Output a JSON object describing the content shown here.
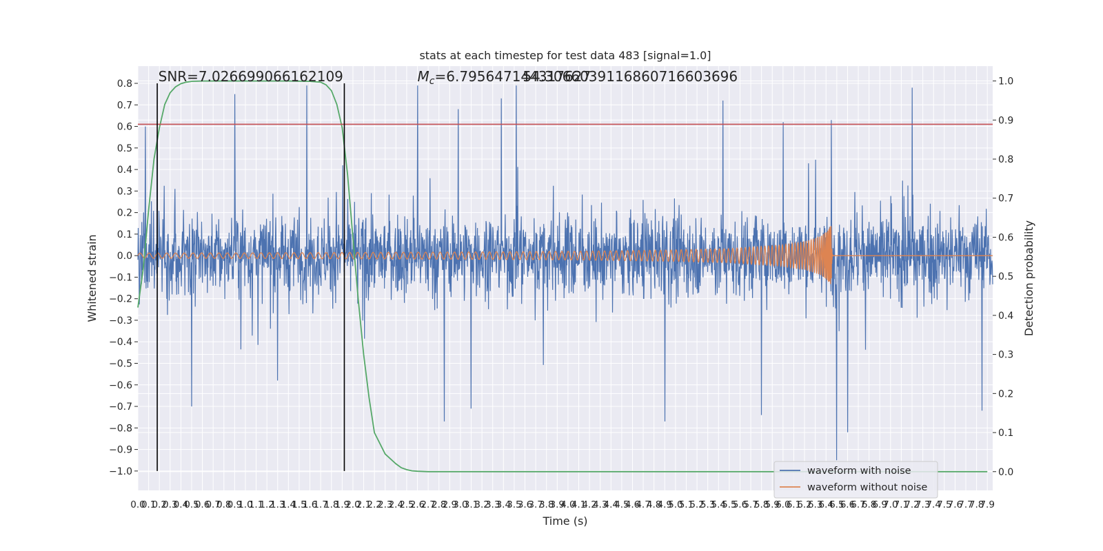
{
  "chart_data": {
    "type": "line",
    "title": "stats at each timestep for test data 483 [signal=1.0]",
    "xlabel": "Time (s)",
    "ylabel": "Whitened strain",
    "y2label": "Detection probability",
    "xlim": [
      0.0,
      7.95
    ],
    "ylim": [
      -1.09,
      0.88
    ],
    "y2lim": [
      -0.048,
      1.038
    ],
    "x_ticks": [
      0.0,
      0.1,
      0.2,
      0.3,
      0.4,
      0.5,
      0.6,
      0.7,
      0.8,
      0.9,
      1.0,
      1.1,
      1.2,
      1.3,
      1.4,
      1.5,
      1.6,
      1.7,
      1.8,
      1.9,
      2.0,
      2.1,
      2.2,
      2.3,
      2.4,
      2.5,
      2.6,
      2.7,
      2.8,
      2.9,
      3.0,
      3.1,
      3.2,
      3.3,
      3.4,
      3.5,
      3.6,
      3.7,
      3.8,
      3.9,
      4.0,
      4.1,
      4.2,
      4.3,
      4.4,
      4.5,
      4.6,
      4.7,
      4.8,
      4.9,
      5.0,
      5.1,
      5.2,
      5.3,
      5.4,
      5.5,
      5.6,
      5.7,
      5.8,
      5.9,
      6.0,
      6.1,
      6.2,
      6.3,
      6.4,
      6.5,
      6.6,
      6.7,
      6.8,
      6.9,
      7.0,
      7.1,
      7.2,
      7.3,
      7.4,
      7.5,
      7.6,
      7.7,
      7.8,
      7.9
    ],
    "x_tick_labels": [
      "0.0",
      "0.1",
      "0.2",
      "0.3",
      "0.4",
      "0.5",
      "0.6",
      "0.7",
      "0.8",
      "0.9",
      "1.0",
      "1.1",
      "1.2",
      "1.3",
      "1.4",
      "1.5",
      "1.6",
      "1.7",
      "1.8",
      "1.9",
      "2.0",
      "2.1",
      "2.2",
      "2.3",
      "2.4",
      "2.5",
      "2.6",
      "2.7",
      "2.8",
      "2.9",
      "3.0",
      "3.1",
      "3.2",
      "3.3",
      "3.4",
      "3.5",
      "3.6",
      "3.7",
      "3.8",
      "3.9",
      "4.0",
      "4.1",
      "4.2",
      "4.3",
      "4.4",
      "4.5",
      "4.6",
      "4.7",
      "4.8",
      "4.9",
      "5.0",
      "5.1",
      "5.2",
      "5.3",
      "5.4",
      "5.5",
      "5.6",
      "5.7",
      "5.8",
      "5.9",
      "6.0",
      "6.1",
      "6.2",
      "6.3",
      "6.4",
      "6.5",
      "6.6",
      "6.7",
      "6.8",
      "6.9",
      "7.0",
      "7.1",
      "7.2",
      "7.3",
      "7.4",
      "7.5",
      "7.6",
      "7.7",
      "7.8",
      "7.9"
    ],
    "y_ticks": [
      0.8,
      0.7,
      0.6,
      0.5,
      0.4,
      0.3,
      0.2,
      0.1,
      0.0,
      -0.1,
      -0.2,
      -0.3,
      -0.4,
      -0.5,
      -0.6,
      -0.7,
      -0.8,
      -0.9,
      -1.0
    ],
    "y_tick_labels": [
      "0.8",
      "0.7",
      "0.6",
      "0.5",
      "0.4",
      "0.3",
      "0.2",
      "0.1",
      "0.0",
      "−0.1",
      "−0.2",
      "−0.3",
      "−0.4",
      "−0.5",
      "−0.6",
      "−0.7",
      "−0.8",
      "−0.9",
      "−1.0"
    ],
    "y2_ticks": [
      1.0,
      0.9,
      0.8,
      0.7,
      0.6,
      0.5,
      0.4,
      0.3,
      0.2,
      0.1,
      0.0
    ],
    "y2_tick_labels": [
      "1.0",
      "0.9",
      "0.8",
      "0.7",
      "0.6",
      "0.5",
      "0.4",
      "0.3",
      "0.2",
      "0.1",
      "0.0"
    ],
    "grid": true,
    "legend_position": "lower-right",
    "series": [
      {
        "name": "waveform with noise",
        "color": "#4c72b0",
        "style": "noise",
        "envelope": 0.32,
        "peaks": [
          [
            0.07,
            0.6
          ],
          [
            0.18,
            0.56
          ],
          [
            0.9,
            0.75
          ],
          [
            1.57,
            0.79
          ],
          [
            2.6,
            0.79
          ],
          [
            3.52,
            0.79
          ],
          [
            3.38,
            0.73
          ],
          [
            2.98,
            0.68
          ],
          [
            5.44,
            0.72
          ],
          [
            7.2,
            0.78
          ],
          [
            6.45,
            0.63
          ],
          [
            6.0,
            0.62
          ],
          [
            0.5,
            -0.7
          ],
          [
            2.85,
            -0.77
          ],
          [
            4.9,
            -0.77
          ],
          [
            6.5,
            -0.95
          ],
          [
            6.6,
            -0.82
          ],
          [
            5.8,
            -0.74
          ],
          [
            7.85,
            -0.72
          ],
          [
            3.1,
            -0.71
          ],
          [
            1.3,
            -0.58
          ]
        ]
      },
      {
        "name": "waveform without noise",
        "color": "#dd8452",
        "style": "chirp",
        "merger_x": 6.45,
        "x": [
          0.0,
          1.0,
          2.0,
          3.0,
          4.0,
          4.5,
          5.0,
          5.5,
          6.0,
          6.2,
          6.35,
          6.42,
          6.45
        ],
        "amplitude": [
          0.012,
          0.013,
          0.015,
          0.017,
          0.02,
          0.023,
          0.027,
          0.033,
          0.05,
          0.065,
          0.09,
          0.12,
          0.145
        ]
      },
      {
        "name": "detection probability",
        "color": "#55a868",
        "axis": "right",
        "x": [
          0.0,
          0.05,
          0.1,
          0.15,
          0.2,
          0.25,
          0.3,
          0.35,
          0.4,
          0.45,
          0.5,
          0.6,
          0.8,
          1.0,
          1.2,
          1.4,
          1.6,
          1.7,
          1.75,
          1.8,
          1.85,
          1.9,
          1.95,
          2.0,
          2.05,
          2.1,
          2.15,
          2.2,
          2.3,
          2.4,
          2.45,
          2.5,
          2.55,
          2.6,
          2.7,
          2.8,
          3.0,
          4.0,
          5.0,
          6.0,
          7.0,
          7.9
        ],
        "values": [
          0.42,
          0.52,
          0.67,
          0.8,
          0.88,
          0.94,
          0.97,
          0.985,
          0.993,
          0.997,
          0.999,
          1.0,
          1.0,
          1.0,
          1.0,
          1.0,
          0.999,
          0.997,
          0.99,
          0.975,
          0.94,
          0.88,
          0.76,
          0.6,
          0.44,
          0.3,
          0.19,
          0.1,
          0.045,
          0.02,
          0.01,
          0.005,
          0.002,
          0.001,
          0.0,
          0.0,
          0.0,
          0.0,
          0.0,
          0.0,
          0.0,
          0.0
        ]
      }
    ],
    "hlines": [
      {
        "y": 0.61,
        "color": "#c44e52"
      }
    ],
    "vlines": [
      {
        "x": 0.18,
        "ymin": -1.0,
        "ymax": 0.8,
        "color": "#000000"
      },
      {
        "x": 1.92,
        "ymin": -1.0,
        "ymax": 0.8,
        "color": "#000000"
      }
    ],
    "annotations": [
      {
        "text": "SNR=7.026699066162109",
        "x": 0.19,
        "y": 0.81
      },
      {
        "text_prefix": "M",
        "text_sub": "c",
        "text_rest": "=6.795647144317627",
        "x": 2.6,
        "y": 0.81
      },
      {
        "text": "54.30660391168607166036​96",
        "x": 3.58,
        "y": 0.81
      }
    ]
  },
  "legend": {
    "entries": [
      "waveform with noise",
      "waveform without noise"
    ]
  }
}
